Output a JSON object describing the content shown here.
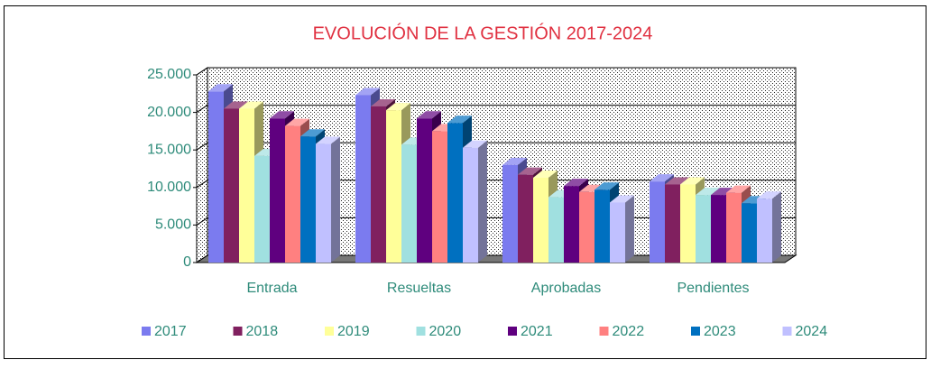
{
  "chart_data": {
    "type": "bar3d",
    "title": "EVOLUCIÓN DE LA GESTIÓN 2017-2024",
    "categories": [
      "Entrada",
      "Resueltas",
      "Aprobadas",
      "Pendientes"
    ],
    "series": [
      {
        "name": "2017",
        "color": "#7b7bef",
        "values": [
          22800,
          22300,
          13000,
          10800
        ]
      },
      {
        "name": "2018",
        "color": "#80205f",
        "values": [
          20500,
          20800,
          11700,
          10400
        ]
      },
      {
        "name": "2019",
        "color": "#ffff99",
        "values": [
          20500,
          20300,
          11300,
          10400
        ]
      },
      {
        "name": "2020",
        "color": "#a0e0e0",
        "values": [
          14200,
          15700,
          8700,
          9000
        ]
      },
      {
        "name": "2021",
        "color": "#5f007f",
        "values": [
          19200,
          19200,
          10200,
          9000
        ]
      },
      {
        "name": "2022",
        "color": "#ff8080",
        "values": [
          18200,
          17500,
          9400,
          9300
        ]
      },
      {
        "name": "2023",
        "color": "#0070c0",
        "values": [
          16800,
          18600,
          9700,
          7900
        ]
      },
      {
        "name": "2024",
        "color": "#c0c0ff",
        "values": [
          15800,
          15300,
          8000,
          8500
        ]
      }
    ],
    "ylim": [
      0,
      25000
    ],
    "yticks": [
      0,
      {
        "value": 5000,
        "label": "5.000"
      },
      {
        "value": 10000,
        "label": "10.000"
      },
      {
        "value": 15000,
        "label": "15.000"
      },
      {
        "value": 20000,
        "label": "20.000"
      },
      {
        "value": 25000,
        "label": "25.000"
      }
    ],
    "grid": true
  }
}
